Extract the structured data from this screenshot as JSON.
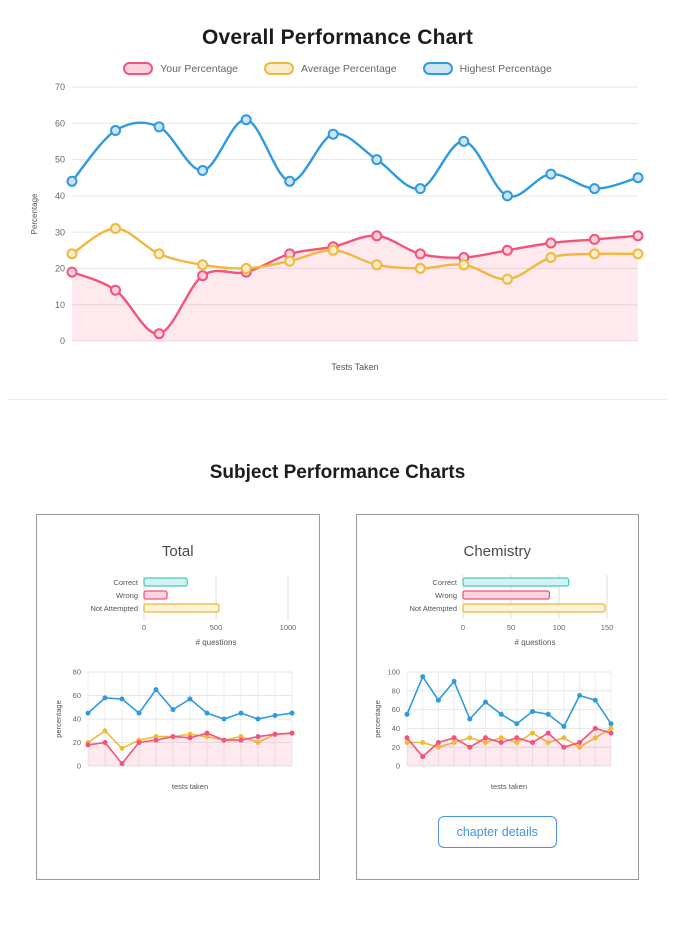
{
  "page": {
    "overall_title": "Overall Performance Chart",
    "subject_title": "Subject Performance Charts"
  },
  "legend": [
    {
      "label": "Your Percentage",
      "color": "#f4537c",
      "fill": "#fbd3dd"
    },
    {
      "label": "Average Percentage",
      "color": "#f0b93c",
      "fill": "#faedcd"
    },
    {
      "label": "Highest Percentage",
      "color": "#2e9bdf",
      "fill": "#cfe5f7"
    }
  ],
  "cards": [
    {
      "title": "Total"
    },
    {
      "title": "Chemistry",
      "button_label": "chapter details"
    }
  ],
  "chart_data": [
    {
      "id": "overall",
      "type": "line",
      "title": "Overall Performance Chart",
      "xlabel": "Tests Taken",
      "ylabel": "Percentage",
      "ylim": [
        0,
        70
      ],
      "yticks": [
        0,
        10,
        20,
        30,
        40,
        50,
        60,
        70
      ],
      "smooth": true,
      "legend_position": "top",
      "grid": "horizontal",
      "series": [
        {
          "name": "Your Percentage",
          "color": "#f4537c",
          "marker_fill": "#fbd3dd",
          "area": "rgba(244,83,124,0.13)",
          "values": [
            19,
            14,
            2,
            18,
            19,
            24,
            26,
            29,
            24,
            23,
            25,
            27,
            28,
            29
          ]
        },
        {
          "name": "Average Percentage",
          "color": "#f0b93c",
          "marker_fill": "#faedcd",
          "values": [
            24,
            31,
            24,
            21,
            20,
            22,
            25,
            21,
            20,
            21,
            17,
            23,
            24,
            24
          ]
        },
        {
          "name": "Highest Percentage",
          "color": "#2e9bdf",
          "marker_fill": "#cfe5f7",
          "values": [
            44,
            58,
            59,
            47,
            61,
            44,
            57,
            50,
            42,
            55,
            40,
            46,
            42,
            45
          ]
        }
      ]
    },
    {
      "id": "total-bar",
      "type": "bar",
      "title": "Total",
      "categories": [
        "Correct",
        "Wrong",
        "Not Attempted"
      ],
      "values": [
        300,
        160,
        520
      ],
      "colors": [
        "#4cc8c0",
        "#f4537c",
        "#f0b93c"
      ],
      "fills": [
        "#d2f3f0",
        "#fbd5de",
        "#fdf3d8"
      ],
      "xlabel": "# questions",
      "xlim": [
        0,
        1000
      ],
      "xticks": [
        0,
        500,
        1000
      ]
    },
    {
      "id": "total-line",
      "type": "line",
      "xlabel": "tests taken",
      "ylabel": "percentage",
      "ylim": [
        0,
        80
      ],
      "yticks": [
        0,
        20,
        40,
        60,
        80
      ],
      "smooth": false,
      "grid": "both",
      "series": [
        {
          "name": "highest",
          "color": "#2e9bdf",
          "values": [
            45,
            58,
            57,
            45,
            65,
            48,
            57,
            45,
            40,
            45,
            40,
            43,
            45
          ]
        },
        {
          "name": "average",
          "color": "#f0b93c",
          "values": [
            20,
            30,
            15,
            22,
            25,
            25,
            27,
            25,
            22,
            25,
            20,
            27,
            28
          ]
        },
        {
          "name": "your",
          "color": "#f4537c",
          "area": "rgba(244,83,124,0.13)",
          "values": [
            18,
            20,
            2,
            20,
            22,
            25,
            24,
            28,
            22,
            22,
            25,
            27,
            28
          ]
        }
      ]
    },
    {
      "id": "chemistry-bar",
      "type": "bar",
      "title": "Chemistry",
      "categories": [
        "Correct",
        "Wrong",
        "Not Attempted"
      ],
      "values": [
        110,
        90,
        148
      ],
      "colors": [
        "#4cc8c0",
        "#f4537c",
        "#f0b93c"
      ],
      "fills": [
        "#d2f3f0",
        "#fbd5de",
        "#fdf3d8"
      ],
      "xlabel": "# questions",
      "xlim": [
        0,
        150
      ],
      "xticks": [
        0,
        50,
        100,
        150
      ]
    },
    {
      "id": "chemistry-line",
      "type": "line",
      "xlabel": "tests taken",
      "ylabel": "percentage",
      "ylim": [
        0,
        100
      ],
      "yticks": [
        0,
        20,
        40,
        60,
        80,
        100
      ],
      "smooth": false,
      "grid": "both",
      "series": [
        {
          "name": "highest",
          "color": "#2e9bdf",
          "values": [
            55,
            95,
            70,
            90,
            50,
            68,
            55,
            45,
            58,
            55,
            42,
            75,
            70,
            45
          ]
        },
        {
          "name": "average",
          "color": "#f0b93c",
          "values": [
            25,
            25,
            20,
            25,
            30,
            25,
            30,
            25,
            35,
            25,
            30,
            20,
            30,
            40
          ]
        },
        {
          "name": "your",
          "color": "#f4537c",
          "area": "rgba(244,83,124,0.13)",
          "values": [
            30,
            10,
            25,
            30,
            20,
            30,
            25,
            30,
            25,
            35,
            20,
            25,
            40,
            35
          ]
        }
      ]
    }
  ]
}
